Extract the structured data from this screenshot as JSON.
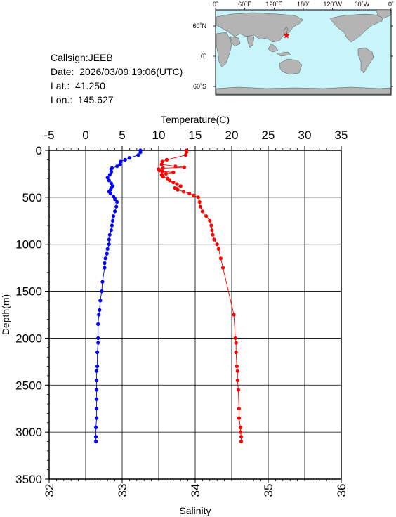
{
  "station": {
    "callsign_label": "Callsign:",
    "callsign": "JEEB",
    "date_label": "Date:",
    "date": "2026/03/09 19:06(UTC)",
    "lat_label": "Lat.:",
    "lat": "41.250",
    "lon_label": "Lon.:",
    "lon": "145.627"
  },
  "map": {
    "lon_labels": [
      "0˚",
      "60˚E",
      "120˚E",
      "180˚",
      "120˚W",
      "60˚W",
      "0˚"
    ],
    "lat_labels": [
      "60˚N",
      "0˚",
      "60˚S"
    ],
    "marker_lon": 145.627,
    "marker_lat": 41.25,
    "ocean_color": "#c8f5fa",
    "land_color": "#b4b4b4",
    "marker_color": "#ff0000"
  },
  "chart_data": {
    "type": "line",
    "xlabel_top": "Temperature(C)",
    "xlabel_bottom": "Salinity",
    "ylabel": "Depth(m)",
    "ylim": [
      3500,
      0
    ],
    "yticks": [
      0,
      500,
      1000,
      1500,
      2000,
      2500,
      3000,
      3500
    ],
    "temperature_range": [
      -5,
      35
    ],
    "temperature_ticks": [
      -5,
      0,
      5,
      10,
      15,
      20,
      25,
      30,
      35
    ],
    "temperature_tick_labels": [
      "-5",
      "0",
      "5",
      "10",
      "15",
      "20",
      "25",
      "30",
      "35"
    ],
    "salinity_range": [
      32,
      36
    ],
    "salinity_ticks": [
      32,
      33,
      34,
      35,
      36
    ],
    "grid": true,
    "series": [
      {
        "quantity": "temperature",
        "color": "#ff0000",
        "points": [
          [
            13.8,
            0
          ],
          [
            13.8,
            20
          ],
          [
            13.7,
            50
          ],
          [
            11.1,
            100
          ],
          [
            10.5,
            120
          ],
          [
            10.4,
            150
          ],
          [
            12.3,
            170
          ],
          [
            13.5,
            180
          ],
          [
            10.6,
            190
          ],
          [
            10.0,
            200
          ],
          [
            10.1,
            215
          ],
          [
            10.5,
            225
          ],
          [
            12.0,
            235
          ],
          [
            11.0,
            250
          ],
          [
            10.4,
            260
          ],
          [
            10.6,
            280
          ],
          [
            11.2,
            300
          ],
          [
            11.5,
            320
          ],
          [
            12.0,
            340
          ],
          [
            12.5,
            360
          ],
          [
            13.0,
            380
          ],
          [
            12.2,
            400
          ],
          [
            12.6,
            420
          ],
          [
            13.4,
            440
          ],
          [
            14.2,
            460
          ],
          [
            14.8,
            480
          ],
          [
            15.4,
            500
          ],
          [
            15.6,
            550
          ],
          [
            15.7,
            600
          ],
          [
            16.0,
            650
          ],
          [
            16.5,
            700
          ],
          [
            17.0,
            750
          ],
          [
            17.2,
            800
          ],
          [
            17.3,
            850
          ],
          [
            17.4,
            900
          ],
          [
            17.6,
            950
          ],
          [
            18.0,
            1000
          ],
          [
            18.2,
            1050
          ],
          [
            18.5,
            1150
          ],
          [
            18.8,
            1250
          ],
          [
            20.3,
            1750
          ],
          [
            20.5,
            2000
          ],
          [
            20.6,
            2050
          ],
          [
            20.6,
            2150
          ],
          [
            20.7,
            2300
          ],
          [
            20.8,
            2350
          ],
          [
            20.8,
            2450
          ],
          [
            20.9,
            2550
          ],
          [
            21.0,
            2750
          ],
          [
            21.0,
            2850
          ],
          [
            21.2,
            2950
          ],
          [
            21.2,
            3000
          ],
          [
            21.3,
            3050
          ],
          [
            21.3,
            3100
          ]
        ]
      },
      {
        "quantity": "salinity",
        "color": "#0000ff",
        "points": [
          [
            33.25,
            0
          ],
          [
            33.25,
            20
          ],
          [
            33.22,
            50
          ],
          [
            33.1,
            80
          ],
          [
            33.04,
            100
          ],
          [
            32.98,
            120
          ],
          [
            32.97,
            150
          ],
          [
            32.93,
            170
          ],
          [
            32.86,
            190
          ],
          [
            32.85,
            200
          ],
          [
            32.85,
            230
          ],
          [
            32.83,
            260
          ],
          [
            32.8,
            290
          ],
          [
            32.82,
            320
          ],
          [
            32.85,
            350
          ],
          [
            32.87,
            380
          ],
          [
            32.85,
            400
          ],
          [
            32.84,
            420
          ],
          [
            32.82,
            440
          ],
          [
            32.84,
            460
          ],
          [
            32.88,
            490
          ],
          [
            32.9,
            520
          ],
          [
            32.93,
            550
          ],
          [
            32.92,
            600
          ],
          [
            32.9,
            650
          ],
          [
            32.88,
            700
          ],
          [
            32.87,
            750
          ],
          [
            32.86,
            800
          ],
          [
            32.85,
            850
          ],
          [
            32.83,
            900
          ],
          [
            32.82,
            950
          ],
          [
            32.82,
            1000
          ],
          [
            32.8,
            1050
          ],
          [
            32.79,
            1100
          ],
          [
            32.77,
            1150
          ],
          [
            32.76,
            1200
          ],
          [
            32.76,
            1250
          ],
          [
            32.73,
            1400
          ],
          [
            32.72,
            1500
          ],
          [
            32.7,
            1600
          ],
          [
            32.69,
            1700
          ],
          [
            32.68,
            1750
          ],
          [
            32.67,
            1850
          ],
          [
            32.67,
            2000
          ],
          [
            32.67,
            2050
          ],
          [
            32.66,
            2150
          ],
          [
            32.66,
            2300
          ],
          [
            32.65,
            2350
          ],
          [
            32.65,
            2450
          ],
          [
            32.65,
            2550
          ],
          [
            32.65,
            2650
          ],
          [
            32.65,
            2750
          ],
          [
            32.65,
            2850
          ],
          [
            32.64,
            2950
          ],
          [
            32.64,
            3050
          ],
          [
            32.64,
            3100
          ]
        ]
      }
    ]
  }
}
